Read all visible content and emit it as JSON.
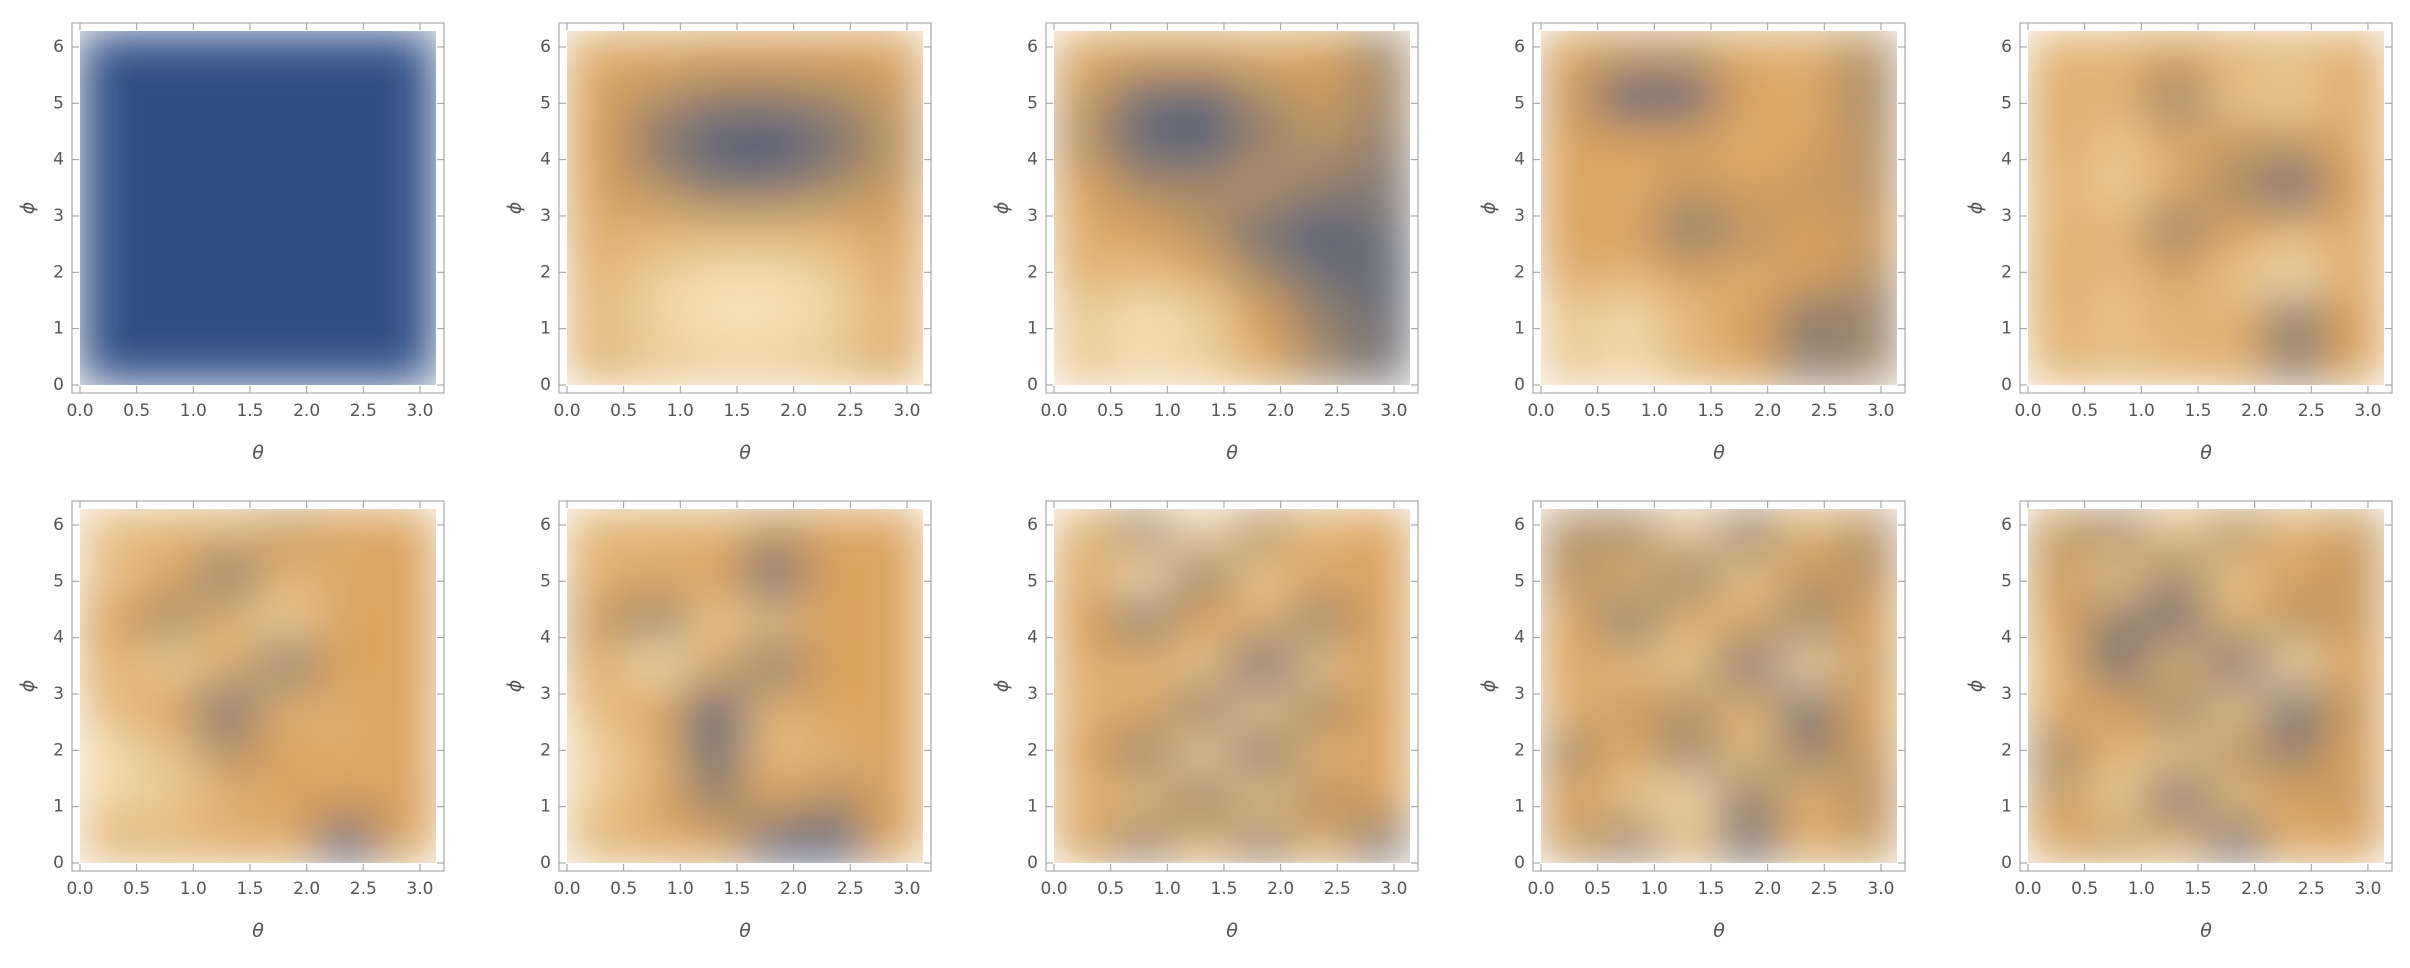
{
  "chart_data": [
    {
      "type": "density",
      "xlabel": "θ",
      "ylabel": "ϕ",
      "xlim": [
        0,
        3.14159
      ],
      "ylim": [
        0,
        6.28319
      ],
      "zlim": [
        0,
        1
      ],
      "colormap": [
        "#2e4f84",
        "#d9a35e",
        "#fff4d3"
      ],
      "xticks": [
        {
          "value": 0,
          "label": "0.0"
        },
        {
          "value": 0.5,
          "label": "0.5"
        },
        {
          "value": 1,
          "label": "1.0"
        },
        {
          "value": 1.5,
          "label": "1.5"
        },
        {
          "value": 2,
          "label": "2.0"
        },
        {
          "value": 2.5,
          "label": "2.5"
        },
        {
          "value": 3,
          "label": "3.0"
        }
      ],
      "yticks": [
        0,
        1,
        2,
        3,
        4,
        5,
        6
      ],
      "z": [
        [
          0,
          0,
          0,
          0,
          0,
          0
        ],
        [
          0,
          0,
          0,
          0,
          0,
          0
        ],
        [
          0,
          0,
          0,
          0,
          0,
          0
        ],
        [
          0,
          0,
          0,
          0,
          0,
          0
        ],
        [
          0,
          0,
          0,
          0,
          0,
          0
        ],
        [
          0,
          0,
          0,
          0,
          0,
          0
        ],
        [
          0,
          0,
          0,
          0,
          0,
          0
        ],
        [
          0,
          0,
          0,
          0,
          0,
          0
        ]
      ]
    },
    {
      "type": "density",
      "xlabel": "θ",
      "ylabel": "ϕ",
      "xlim": [
        0,
        3.14159
      ],
      "ylim": [
        0,
        6.28319
      ],
      "zlim": [
        0,
        1
      ],
      "colormap": [
        "#2e4f84",
        "#d9a35e",
        "#fff4d3"
      ],
      "xticks": [
        {
          "value": 0,
          "label": "0.0"
        },
        {
          "value": 0.5,
          "label": "0.5"
        },
        {
          "value": 1,
          "label": "1.0"
        },
        {
          "value": 1.5,
          "label": "1.5"
        },
        {
          "value": 2,
          "label": "2.0"
        },
        {
          "value": 2.5,
          "label": "2.5"
        },
        {
          "value": 3,
          "label": "3.0"
        }
      ],
      "yticks": [
        0,
        1,
        2,
        3,
        4,
        5,
        6
      ],
      "z": [
        [
          0.6,
          0.7,
          0.75,
          0.75,
          0.7,
          0.55
        ],
        [
          0.65,
          0.8,
          0.9,
          0.9,
          0.8,
          0.6
        ],
        [
          0.6,
          0.75,
          0.85,
          0.85,
          0.75,
          0.55
        ],
        [
          0.55,
          0.6,
          0.6,
          0.6,
          0.6,
          0.5
        ],
        [
          0.5,
          0.4,
          0.25,
          0.25,
          0.35,
          0.45
        ],
        [
          0.5,
          0.25,
          0.1,
          0.05,
          0.2,
          0.4
        ],
        [
          0.5,
          0.4,
          0.3,
          0.3,
          0.35,
          0.45
        ],
        [
          0.55,
          0.55,
          0.5,
          0.5,
          0.5,
          0.5
        ]
      ]
    },
    {
      "type": "density",
      "xlabel": "θ",
      "ylabel": "ϕ",
      "xlim": [
        0,
        3.14159
      ],
      "ylim": [
        0,
        6.28319
      ],
      "zlim": [
        0,
        1
      ],
      "colormap": [
        "#2e4f84",
        "#d9a35e",
        "#fff4d3"
      ],
      "xticks": [
        {
          "value": 0,
          "label": "0.0"
        },
        {
          "value": 0.5,
          "label": "0.5"
        },
        {
          "value": 1,
          "label": "1.0"
        },
        {
          "value": 1.5,
          "label": "1.5"
        },
        {
          "value": 2,
          "label": "2.0"
        },
        {
          "value": 2.5,
          "label": "2.5"
        },
        {
          "value": 3,
          "label": "3.0"
        }
      ],
      "yticks": [
        0,
        1,
        2,
        3,
        4,
        5,
        6
      ],
      "z": [
        [
          0.7,
          0.8,
          0.75,
          0.55,
          0.35,
          0.2
        ],
        [
          0.75,
          0.9,
          0.8,
          0.5,
          0.3,
          0.2
        ],
        [
          0.6,
          0.65,
          0.55,
          0.35,
          0.2,
          0.15
        ],
        [
          0.55,
          0.5,
          0.4,
          0.2,
          0.1,
          0.2
        ],
        [
          0.5,
          0.35,
          0.35,
          0.4,
          0.3,
          0.25
        ],
        [
          0.4,
          0.15,
          0.1,
          0.3,
          0.4,
          0.3
        ],
        [
          0.45,
          0.2,
          0.15,
          0.35,
          0.45,
          0.35
        ],
        [
          0.55,
          0.5,
          0.5,
          0.55,
          0.5,
          0.35
        ]
      ]
    },
    {
      "type": "density",
      "xlabel": "θ",
      "ylabel": "ϕ",
      "xlim": [
        0,
        3.14159
      ],
      "ylim": [
        0,
        6.28319
      ],
      "zlim": [
        0,
        1
      ],
      "colormap": [
        "#2e4f84",
        "#d9a35e",
        "#fff4d3"
      ],
      "xticks": [
        {
          "value": 0,
          "label": "0.0"
        },
        {
          "value": 0.5,
          "label": "0.5"
        },
        {
          "value": 1,
          "label": "1.0"
        },
        {
          "value": 1.5,
          "label": "1.5"
        },
        {
          "value": 2,
          "label": "2.0"
        },
        {
          "value": 2.5,
          "label": "2.5"
        },
        {
          "value": 3,
          "label": "3.0"
        }
      ],
      "yticks": [
        0,
        1,
        2,
        3,
        4,
        5,
        6
      ],
      "z": [
        [
          0.7,
          0.8,
          0.6,
          0.5,
          0.3,
          0.35
        ],
        [
          0.75,
          0.85,
          0.65,
          0.5,
          0.25,
          0.3
        ],
        [
          0.55,
          0.6,
          0.5,
          0.55,
          0.5,
          0.4
        ],
        [
          0.5,
          0.5,
          0.25,
          0.4,
          0.5,
          0.45
        ],
        [
          0.5,
          0.55,
          0.45,
          0.5,
          0.45,
          0.4
        ],
        [
          0.5,
          0.5,
          0.5,
          0.55,
          0.5,
          0.4
        ],
        [
          0.45,
          0.1,
          0.15,
          0.5,
          0.55,
          0.35
        ],
        [
          0.5,
          0.45,
          0.45,
          0.55,
          0.55,
          0.4
        ]
      ]
    },
    {
      "type": "density",
      "xlabel": "θ",
      "ylabel": "ϕ",
      "xlim": [
        0,
        3.14159
      ],
      "ylim": [
        0,
        6.28319
      ],
      "zlim": [
        0,
        1
      ],
      "colormap": [
        "#2e4f84",
        "#d9a35e",
        "#fff4d3"
      ],
      "xticks": [
        {
          "value": 0,
          "label": "0.0"
        },
        {
          "value": 0.5,
          "label": "0.5"
        },
        {
          "value": 1,
          "label": "1.0"
        },
        {
          "value": 1.5,
          "label": "1.5"
        },
        {
          "value": 2,
          "label": "2.0"
        },
        {
          "value": 2.5,
          "label": "2.5"
        },
        {
          "value": 3,
          "label": "3.0"
        }
      ],
      "yticks": [
        0,
        1,
        2,
        3,
        4,
        5,
        6
      ],
      "z": [
        [
          0.6,
          0.65,
          0.6,
          0.55,
          0.3,
          0.5
        ],
        [
          0.6,
          0.7,
          0.6,
          0.6,
          0.25,
          0.5
        ],
        [
          0.55,
          0.65,
          0.5,
          0.7,
          0.85,
          0.55
        ],
        [
          0.6,
          0.6,
          0.3,
          0.5,
          0.6,
          0.55
        ],
        [
          0.6,
          0.75,
          0.55,
          0.35,
          0.15,
          0.5
        ],
        [
          0.55,
          0.7,
          0.55,
          0.45,
          0.45,
          0.55
        ],
        [
          0.55,
          0.6,
          0.3,
          0.7,
          0.75,
          0.55
        ],
        [
          0.6,
          0.6,
          0.5,
          0.6,
          0.65,
          0.55
        ]
      ]
    },
    {
      "type": "density",
      "xlabel": "θ",
      "ylabel": "ϕ",
      "xlim": [
        0,
        3.14159
      ],
      "ylim": [
        0,
        6.28319
      ],
      "zlim": [
        0,
        1
      ],
      "colormap": [
        "#2e4f84",
        "#d9a35e",
        "#fff4d3"
      ],
      "xticks": [
        {
          "value": 0,
          "label": "0.0"
        },
        {
          "value": 0.5,
          "label": "0.5"
        },
        {
          "value": 1,
          "label": "1.0"
        },
        {
          "value": 1.5,
          "label": "1.5"
        },
        {
          "value": 2,
          "label": "2.0"
        },
        {
          "value": 2.5,
          "label": "2.5"
        },
        {
          "value": 3,
          "label": "3.0"
        }
      ],
      "yticks": [
        0,
        1,
        2,
        3,
        4,
        5,
        6
      ],
      "z": [
        [
          0.6,
          0.6,
          0.55,
          0.55,
          0.1,
          0.5
        ],
        [
          0.8,
          0.75,
          0.6,
          0.5,
          0.5,
          0.5
        ],
        [
          0.85,
          0.7,
          0.4,
          0.5,
          0.55,
          0.5
        ],
        [
          0.65,
          0.5,
          0.2,
          0.6,
          0.55,
          0.5
        ],
        [
          0.6,
          0.75,
          0.6,
          0.25,
          0.5,
          0.5
        ],
        [
          0.5,
          0.35,
          0.6,
          0.75,
          0.5,
          0.5
        ],
        [
          0.7,
          0.55,
          0.25,
          0.6,
          0.55,
          0.5
        ],
        [
          0.65,
          0.6,
          0.6,
          0.45,
          0.5,
          0.5
        ]
      ]
    },
    {
      "type": "density",
      "xlabel": "θ",
      "ylabel": "ϕ",
      "xlim": [
        0,
        3.14159
      ],
      "ylim": [
        0,
        6.28319
      ],
      "zlim": [
        0,
        1
      ],
      "colormap": [
        "#2e4f84",
        "#d9a35e",
        "#fff4d3"
      ],
      "xticks": [
        {
          "value": 0,
          "label": "0.0"
        },
        {
          "value": 0.5,
          "label": "0.5"
        },
        {
          "value": 1,
          "label": "1.0"
        },
        {
          "value": 1.5,
          "label": "1.5"
        },
        {
          "value": 2,
          "label": "2.0"
        },
        {
          "value": 2.5,
          "label": "2.5"
        },
        {
          "value": 3,
          "label": "3.0"
        }
      ],
      "yticks": [
        0,
        1,
        2,
        3,
        4,
        5,
        6
      ],
      "z": [
        [
          0.6,
          0.55,
          0.5,
          0.15,
          0.1,
          0.5
        ],
        [
          0.75,
          0.55,
          0.3,
          0.5,
          0.4,
          0.5
        ],
        [
          0.8,
          0.6,
          0.2,
          0.65,
          0.6,
          0.5
        ],
        [
          0.65,
          0.5,
          0.15,
          0.6,
          0.5,
          0.5
        ],
        [
          0.55,
          0.85,
          0.55,
          0.25,
          0.5,
          0.5
        ],
        [
          0.45,
          0.3,
          0.7,
          0.65,
          0.5,
          0.5
        ],
        [
          0.6,
          0.55,
          0.5,
          0.15,
          0.5,
          0.5
        ],
        [
          0.6,
          0.6,
          0.6,
          0.45,
          0.5,
          0.5
        ]
      ]
    },
    {
      "type": "density",
      "xlabel": "θ",
      "ylabel": "ϕ",
      "xlim": [
        0,
        3.14159
      ],
      "ylim": [
        0,
        6.28319
      ],
      "zlim": [
        0,
        1
      ],
      "colormap": [
        "#2e4f84",
        "#d9a35e",
        "#fff4d3"
      ],
      "xticks": [
        {
          "value": 0,
          "label": "0.0"
        },
        {
          "value": 0.5,
          "label": "0.5"
        },
        {
          "value": 1,
          "label": "1.0"
        },
        {
          "value": 1.5,
          "label": "1.5"
        },
        {
          "value": 2,
          "label": "2.0"
        },
        {
          "value": 2.5,
          "label": "2.5"
        },
        {
          "value": 3,
          "label": "3.0"
        }
      ],
      "yticks": [
        0,
        1,
        2,
        3,
        4,
        5,
        6
      ],
      "z": [
        [
          0.5,
          0.3,
          0.6,
          0.3,
          0.55,
          0.25
        ],
        [
          0.6,
          0.65,
          0.3,
          0.7,
          0.4,
          0.5
        ],
        [
          0.5,
          0.3,
          0.75,
          0.25,
          0.6,
          0.5
        ],
        [
          0.6,
          0.55,
          0.3,
          0.7,
          0.35,
          0.5
        ],
        [
          0.55,
          0.6,
          0.7,
          0.15,
          0.7,
          0.5
        ],
        [
          0.5,
          0.25,
          0.5,
          0.6,
          0.3,
          0.5
        ],
        [
          0.55,
          0.85,
          0.3,
          0.7,
          0.55,
          0.5
        ],
        [
          0.6,
          0.35,
          0.8,
          0.4,
          0.6,
          0.5
        ]
      ]
    },
    {
      "type": "density",
      "xlabel": "θ",
      "ylabel": "ϕ",
      "xlim": [
        0,
        3.14159
      ],
      "ylim": [
        0,
        6.28319
      ],
      "zlim": [
        0,
        1
      ],
      "colormap": [
        "#2e4f84",
        "#d9a35e",
        "#fff4d3"
      ],
      "xticks": [
        {
          "value": 0,
          "label": "0.0"
        },
        {
          "value": 0.5,
          "label": "0.5"
        },
        {
          "value": 1,
          "label": "1.0"
        },
        {
          "value": 1.5,
          "label": "1.5"
        },
        {
          "value": 2,
          "label": "2.0"
        },
        {
          "value": 2.5,
          "label": "2.5"
        },
        {
          "value": 3,
          "label": "3.0"
        }
      ],
      "yticks": [
        0,
        1,
        2,
        3,
        4,
        5,
        6
      ],
      "z": [
        [
          0.45,
          0.3,
          0.65,
          0.2,
          0.55,
          0.45
        ],
        [
          0.5,
          0.7,
          0.85,
          0.3,
          0.6,
          0.4
        ],
        [
          0.35,
          0.55,
          0.3,
          0.65,
          0.3,
          0.45
        ],
        [
          0.6,
          0.45,
          0.4,
          0.6,
          0.2,
          0.5
        ],
        [
          0.5,
          0.65,
          0.7,
          0.2,
          0.8,
          0.45
        ],
        [
          0.55,
          0.25,
          0.6,
          0.55,
          0.3,
          0.5
        ],
        [
          0.4,
          0.6,
          0.3,
          0.7,
          0.45,
          0.4
        ],
        [
          0.4,
          0.35,
          0.75,
          0.3,
          0.6,
          0.4
        ]
      ]
    },
    {
      "type": "density",
      "xlabel": "θ",
      "ylabel": "ϕ",
      "xlim": [
        0,
        3.14159
      ],
      "ylim": [
        0,
        6.28319
      ],
      "zlim": [
        0,
        1
      ],
      "colormap": [
        "#2e4f84",
        "#d9a35e",
        "#fff4d3"
      ],
      "xticks": [
        {
          "value": 0,
          "label": "0.0"
        },
        {
          "value": 0.5,
          "label": "0.5"
        },
        {
          "value": 1,
          "label": "1.0"
        },
        {
          "value": 1.5,
          "label": "1.5"
        },
        {
          "value": 2,
          "label": "2.0"
        },
        {
          "value": 2.5,
          "label": "2.5"
        },
        {
          "value": 3,
          "label": "3.0"
        }
      ],
      "yticks": [
        0,
        1,
        2,
        3,
        4,
        5,
        6
      ],
      "z": [
        [
          0.5,
          0.45,
          0.6,
          0.2,
          0.55,
          0.5
        ],
        [
          0.45,
          0.75,
          0.2,
          0.65,
          0.5,
          0.45
        ],
        [
          0.35,
          0.6,
          0.7,
          0.4,
          0.3,
          0.5
        ],
        [
          0.55,
          0.5,
          0.3,
          0.7,
          0.2,
          0.45
        ],
        [
          0.6,
          0.2,
          0.6,
          0.2,
          0.8,
          0.5
        ],
        [
          0.5,
          0.3,
          0.2,
          0.6,
          0.4,
          0.45
        ],
        [
          0.45,
          0.7,
          0.35,
          0.7,
          0.5,
          0.45
        ],
        [
          0.45,
          0.35,
          0.7,
          0.4,
          0.6,
          0.45
        ]
      ]
    }
  ]
}
